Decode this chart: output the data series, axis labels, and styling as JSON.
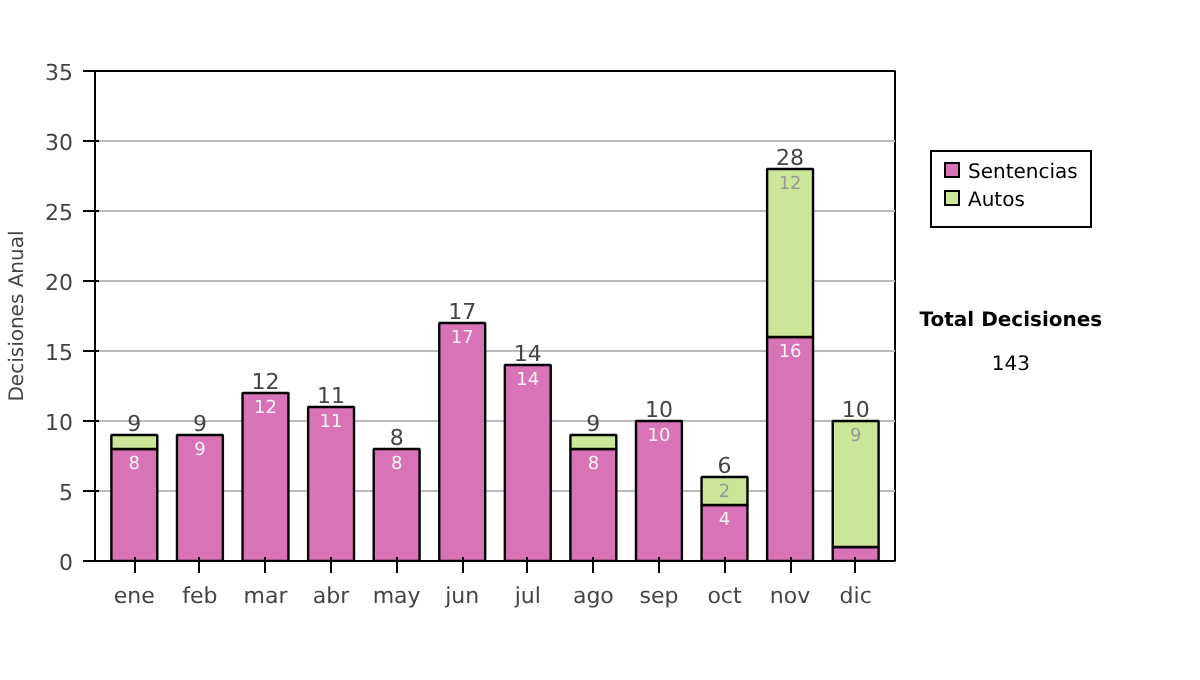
{
  "chart_data": {
    "type": "bar",
    "stacked": true,
    "ylabel": "Decisiones Anual",
    "categories": [
      "ene",
      "feb",
      "mar",
      "abr",
      "may",
      "jun",
      "jul",
      "ago",
      "sep",
      "oct",
      "nov",
      "dic"
    ],
    "series": [
      {
        "name": "Sentencias",
        "color": "#d873b8",
        "values": [
          8,
          9,
          12,
          11,
          8,
          17,
          14,
          8,
          10,
          4,
          16,
          1
        ],
        "value_labels": [
          "8",
          "9",
          "12",
          "11",
          "8",
          "17",
          "14",
          "8",
          "10",
          "4",
          "16",
          null
        ]
      },
      {
        "name": "Autos",
        "color": "#cce699",
        "values": [
          1,
          0,
          0,
          0,
          0,
          0,
          0,
          1,
          0,
          2,
          12,
          9
        ],
        "value_labels": [
          null,
          null,
          null,
          null,
          null,
          null,
          null,
          null,
          null,
          "2",
          "12",
          "9"
        ]
      }
    ],
    "totals": [
      "9",
      "9",
      "12",
      "11",
      "8",
      "17",
      "14",
      "9",
      "10",
      "6",
      "28",
      "10"
    ],
    "ylim": [
      0,
      35
    ],
    "yticks": [
      0,
      5,
      10,
      15,
      20,
      25,
      30,
      35
    ],
    "grid": "y",
    "legend": "right",
    "annotations": [
      "Total Decisiones",
      "143"
    ]
  }
}
